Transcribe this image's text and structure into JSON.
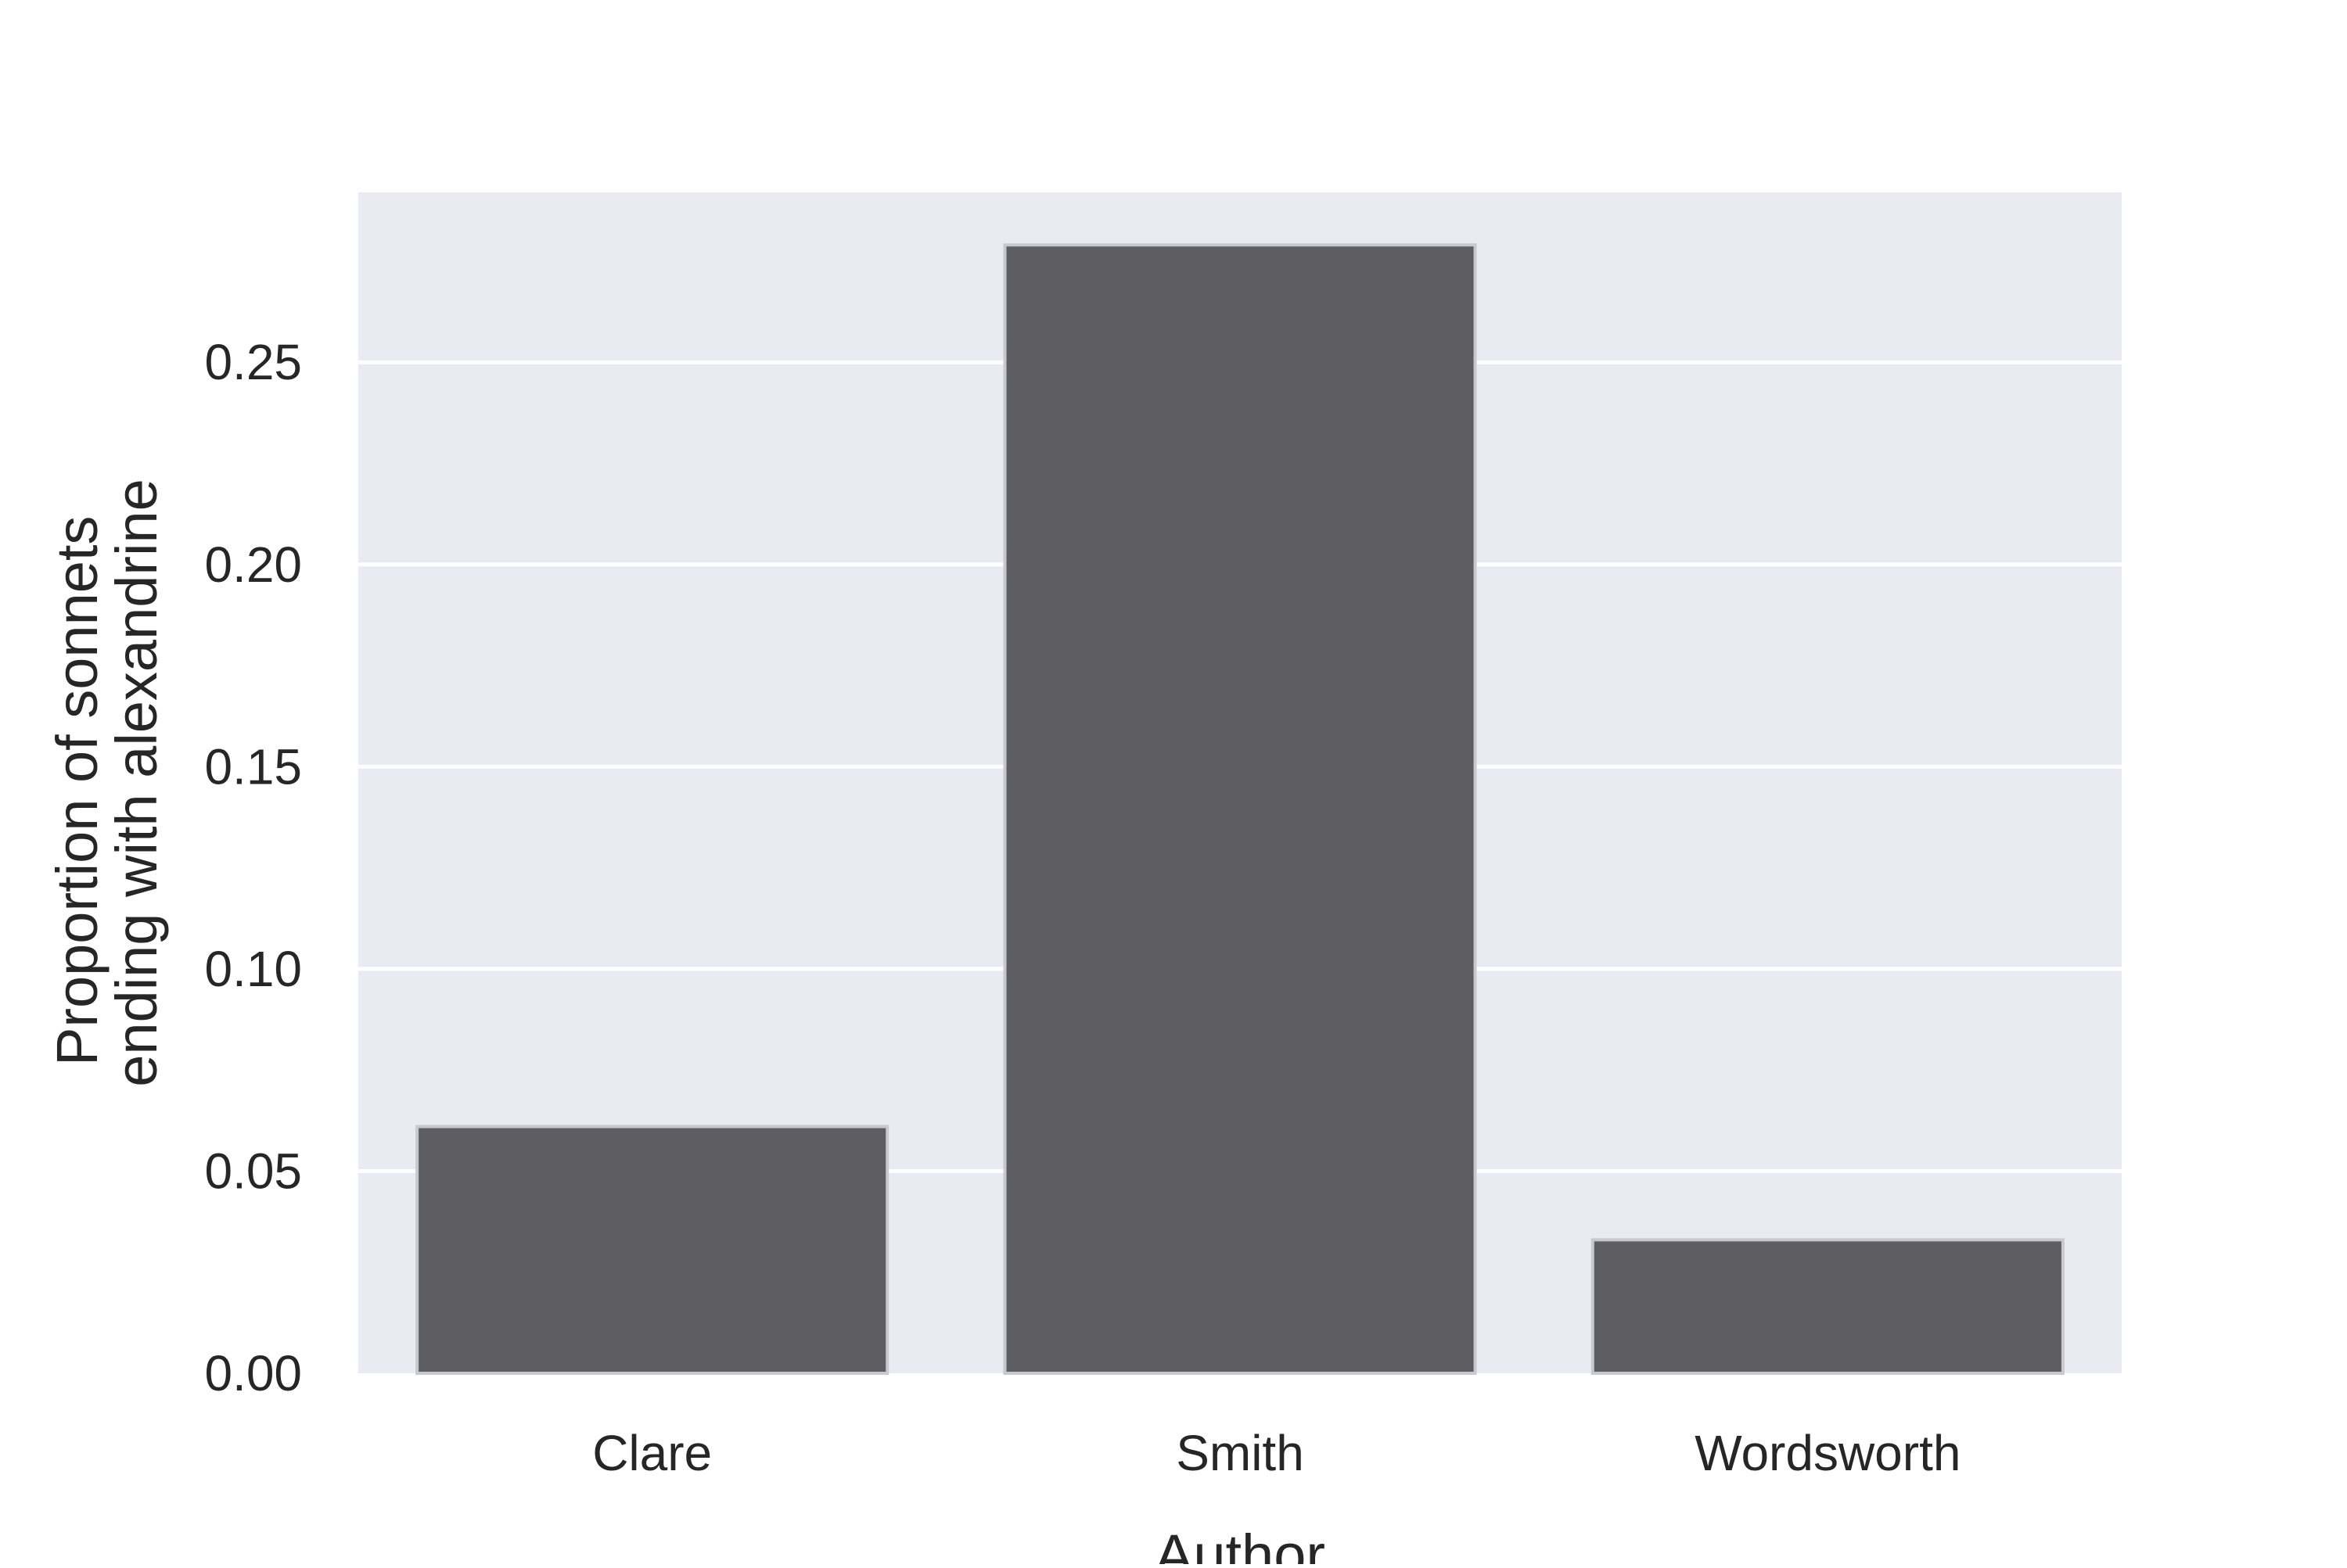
{
  "chart_data": {
    "type": "bar",
    "title": "",
    "xlabel": "Author",
    "ylabel": [
      "Proportion of sonnets",
      "ending with alexandrine"
    ],
    "categories": [
      "Clare",
      "Smith",
      "Wordsworth"
    ],
    "values": [
      0.061,
      0.279,
      0.033
    ],
    "ylim": [
      0,
      0.292
    ],
    "yticks": [
      0.0,
      0.05,
      0.1,
      0.15,
      0.2,
      0.25
    ],
    "ytick_labels": [
      "0.00",
      "0.05",
      "0.10",
      "0.15",
      "0.20",
      "0.25"
    ],
    "grid": "y",
    "legend": "none",
    "colors": {
      "plot_background": "#eaeaf2",
      "bar": "#5e5d62",
      "bar_edge": "#c8c8d0",
      "grid": "#ffffff",
      "text": "#262626"
    }
  }
}
